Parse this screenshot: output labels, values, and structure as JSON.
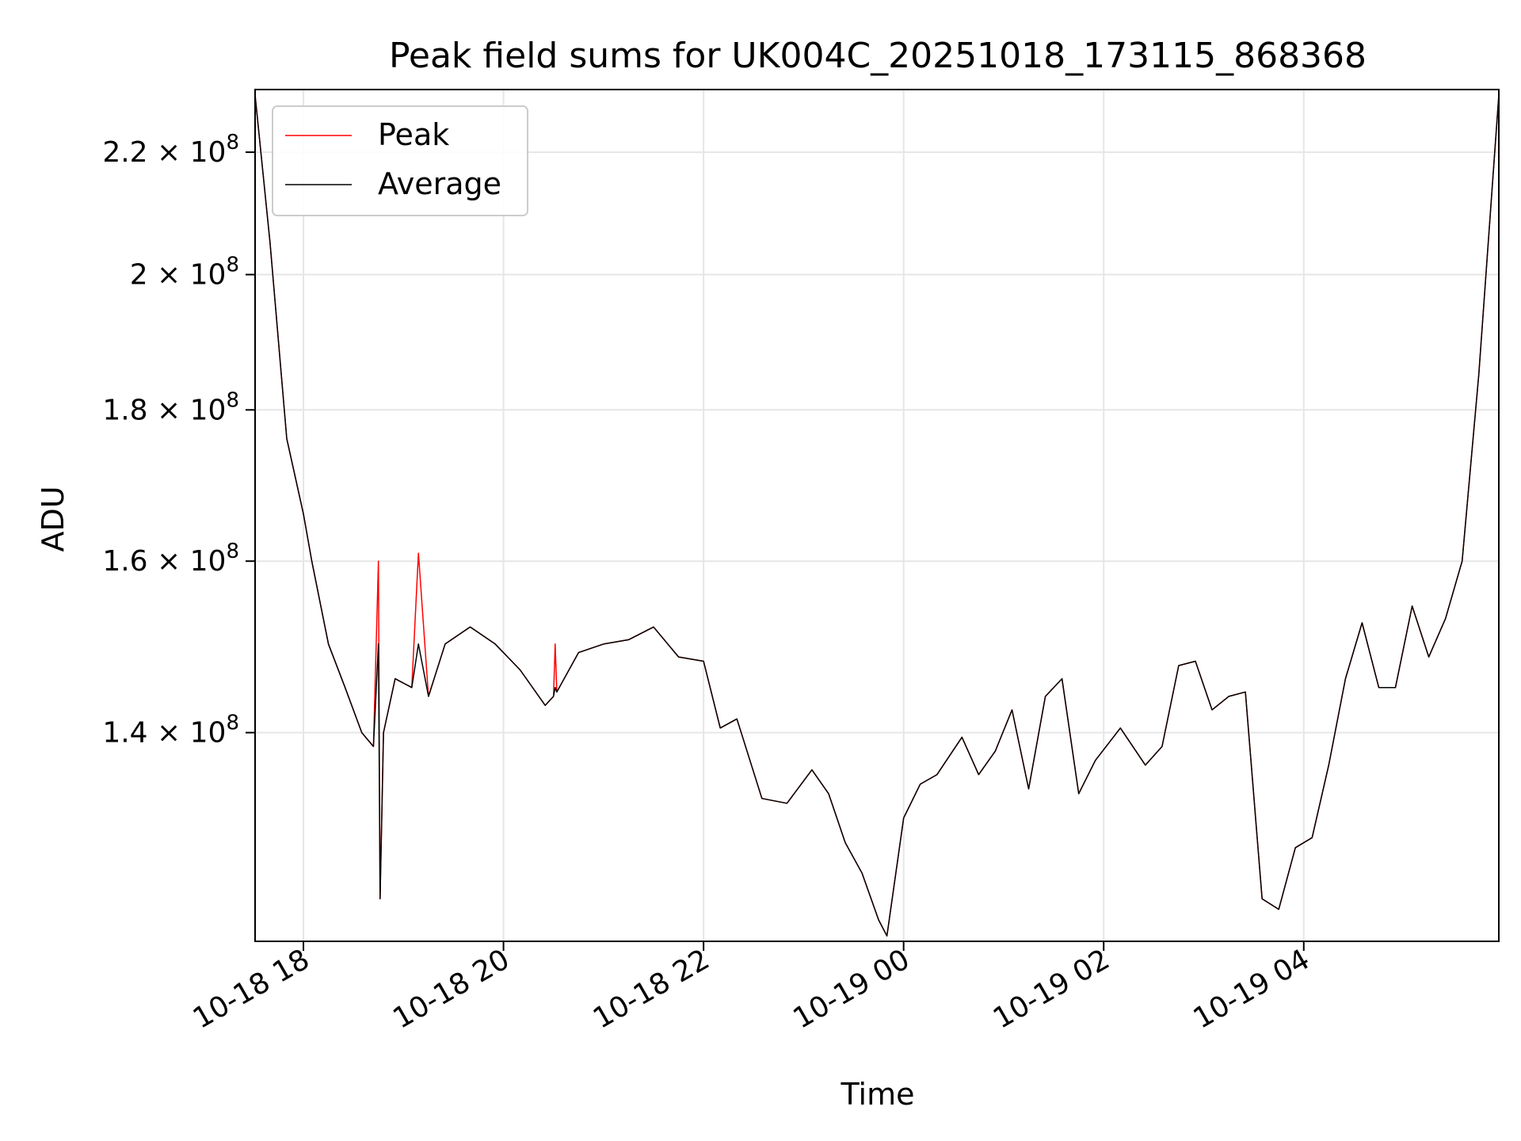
{
  "chart_data": {
    "type": "line",
    "title": "Peak field sums for UK004C_20251018_173115_868368",
    "xlabel": "Time",
    "ylabel": "ADU",
    "y_scale": "log",
    "grid": true,
    "legend_position": "top-left",
    "x_ticks": [
      "10-18 18",
      "10-18 20",
      "10-18 22",
      "10-19 00",
      "10-19 02",
      "10-19 04"
    ],
    "y_ticks": [
      {
        "value": 140000000,
        "mantissa": "1.4",
        "exp": "8"
      },
      {
        "value": 160000000,
        "mantissa": "1.6",
        "exp": "8"
      },
      {
        "value": 180000000,
        "mantissa": "1.8",
        "exp": "8"
      },
      {
        "value": 200000000,
        "mantissa": "2",
        "exp": "8"
      },
      {
        "value": 220000000,
        "mantissa": "2.2",
        "exp": "8"
      }
    ],
    "xlim": [
      "2025-10-18 17:31",
      "2025-10-19 05:57"
    ],
    "ylim": [
      119000000,
      231000000
    ],
    "series": [
      {
        "name": "Peak",
        "color": "#ff0000",
        "x": [
          "2025-10-18 17:31",
          "2025-10-18 17:40",
          "2025-10-18 17:50",
          "2025-10-18 18:00",
          "2025-10-18 18:05",
          "2025-10-18 18:15",
          "2025-10-18 18:25",
          "2025-10-18 18:35",
          "2025-10-18 18:42",
          "2025-10-18 18:45",
          "2025-10-18 18:46",
          "2025-10-18 18:48",
          "2025-10-18 18:55",
          "2025-10-18 19:05",
          "2025-10-18 19:09",
          "2025-10-18 19:15",
          "2025-10-18 19:25",
          "2025-10-18 19:40",
          "2025-10-18 19:55",
          "2025-10-18 20:10",
          "2025-10-18 20:25",
          "2025-10-18 20:30",
          "2025-10-18 20:31",
          "2025-10-18 20:32",
          "2025-10-18 20:45",
          "2025-10-18 21:00",
          "2025-10-18 21:15",
          "2025-10-18 21:30",
          "2025-10-18 21:45",
          "2025-10-18 22:00",
          "2025-10-18 22:10",
          "2025-10-18 22:20",
          "2025-10-18 22:35",
          "2025-10-18 22:50",
          "2025-10-18 23:05",
          "2025-10-18 23:15",
          "2025-10-18 23:25",
          "2025-10-18 23:35",
          "2025-10-18 23:45",
          "2025-10-18 23:50",
          "2025-10-19 00:00",
          "2025-10-19 00:10",
          "2025-10-19 00:20",
          "2025-10-19 00:35",
          "2025-10-19 00:45",
          "2025-10-19 00:55",
          "2025-10-19 01:05",
          "2025-10-19 01:15",
          "2025-10-19 01:25",
          "2025-10-19 01:35",
          "2025-10-19 01:45",
          "2025-10-19 01:55",
          "2025-10-19 02:10",
          "2025-10-19 02:25",
          "2025-10-19 02:35",
          "2025-10-19 02:45",
          "2025-10-19 02:55",
          "2025-10-19 03:05",
          "2025-10-19 03:15",
          "2025-10-19 03:25",
          "2025-10-19 03:35",
          "2025-10-19 03:45",
          "2025-10-19 03:55",
          "2025-10-19 04:05",
          "2025-10-19 04:15",
          "2025-10-19 04:25",
          "2025-10-19 04:35",
          "2025-10-19 04:45",
          "2025-10-19 04:55",
          "2025-10-19 05:05",
          "2025-10-19 05:15",
          "2025-10-19 05:25",
          "2025-10-19 05:35",
          "2025-10-19 05:45",
          "2025-10-19 05:57"
        ],
        "y": [
          230000000,
          205000000,
          176000000,
          166000000,
          160000000,
          150000000,
          145000000,
          140000000,
          138500000,
          160000000,
          123000000,
          140000000,
          146000000,
          145000000,
          161000000,
          144000000,
          150000000,
          152000000,
          150000000,
          147000000,
          143000000,
          144000000,
          150000000,
          144500000,
          149000000,
          150000000,
          150500000,
          152000000,
          148500000,
          148000000,
          140500000,
          141500000,
          133000000,
          132500000,
          136000000,
          133500000,
          128500000,
          125500000,
          121000000,
          119500000,
          131000000,
          134500000,
          135500000,
          139500000,
          135500000,
          138000000,
          142500000,
          134000000,
          144000000,
          146000000,
          133500000,
          137000000,
          140500000,
          136500000,
          138500000,
          147500000,
          148000000,
          142500000,
          144000000,
          144500000,
          123000000,
          122000000,
          128000000,
          129000000,
          136500000,
          146000000,
          152500000,
          145000000,
          145000000,
          154500000,
          148500000,
          153000000,
          160000000,
          185000000,
          230000000
        ]
      },
      {
        "name": "Average",
        "color": "#000000",
        "x": [
          "2025-10-18 17:31",
          "2025-10-18 17:40",
          "2025-10-18 17:50",
          "2025-10-18 18:00",
          "2025-10-18 18:05",
          "2025-10-18 18:15",
          "2025-10-18 18:25",
          "2025-10-18 18:35",
          "2025-10-18 18:42",
          "2025-10-18 18:45",
          "2025-10-18 18:46",
          "2025-10-18 18:48",
          "2025-10-18 18:55",
          "2025-10-18 19:05",
          "2025-10-18 19:09",
          "2025-10-18 19:15",
          "2025-10-18 19:25",
          "2025-10-18 19:40",
          "2025-10-18 19:55",
          "2025-10-18 20:10",
          "2025-10-18 20:25",
          "2025-10-18 20:30",
          "2025-10-18 20:31",
          "2025-10-18 20:32",
          "2025-10-18 20:45",
          "2025-10-18 21:00",
          "2025-10-18 21:15",
          "2025-10-18 21:30",
          "2025-10-18 21:45",
          "2025-10-18 22:00",
          "2025-10-18 22:10",
          "2025-10-18 22:20",
          "2025-10-18 22:35",
          "2025-10-18 22:50",
          "2025-10-18 23:05",
          "2025-10-18 23:15",
          "2025-10-18 23:25",
          "2025-10-18 23:35",
          "2025-10-18 23:45",
          "2025-10-18 23:50",
          "2025-10-19 00:00",
          "2025-10-19 00:10",
          "2025-10-19 00:20",
          "2025-10-19 00:35",
          "2025-10-19 00:45",
          "2025-10-19 00:55",
          "2025-10-19 01:05",
          "2025-10-19 01:15",
          "2025-10-19 01:25",
          "2025-10-19 01:35",
          "2025-10-19 01:45",
          "2025-10-19 01:55",
          "2025-10-19 02:10",
          "2025-10-19 02:25",
          "2025-10-19 02:35",
          "2025-10-19 02:45",
          "2025-10-19 02:55",
          "2025-10-19 03:05",
          "2025-10-19 03:15",
          "2025-10-19 03:25",
          "2025-10-19 03:35",
          "2025-10-19 03:45",
          "2025-10-19 03:55",
          "2025-10-19 04:05",
          "2025-10-19 04:15",
          "2025-10-19 04:25",
          "2025-10-19 04:35",
          "2025-10-19 04:45",
          "2025-10-19 04:55",
          "2025-10-19 05:05",
          "2025-10-19 05:15",
          "2025-10-19 05:25",
          "2025-10-19 05:35",
          "2025-10-19 05:45",
          "2025-10-19 05:57"
        ],
        "y": [
          230000000,
          205000000,
          176000000,
          166000000,
          160000000,
          150000000,
          145000000,
          140000000,
          138500000,
          150000000,
          123000000,
          140000000,
          146000000,
          145000000,
          150000000,
          144000000,
          150000000,
          152000000,
          150000000,
          147000000,
          143000000,
          144000000,
          145000000,
          144500000,
          149000000,
          150000000,
          150500000,
          152000000,
          148500000,
          148000000,
          140500000,
          141500000,
          133000000,
          132500000,
          136000000,
          133500000,
          128500000,
          125500000,
          121000000,
          119500000,
          131000000,
          134500000,
          135500000,
          139500000,
          135500000,
          138000000,
          142500000,
          134000000,
          144000000,
          146000000,
          133500000,
          137000000,
          140500000,
          136500000,
          138500000,
          147500000,
          148000000,
          142500000,
          144000000,
          144500000,
          123000000,
          122000000,
          128000000,
          129000000,
          136500000,
          146000000,
          152500000,
          145000000,
          145000000,
          154500000,
          148500000,
          153000000,
          160000000,
          185000000,
          230000000
        ]
      }
    ]
  }
}
